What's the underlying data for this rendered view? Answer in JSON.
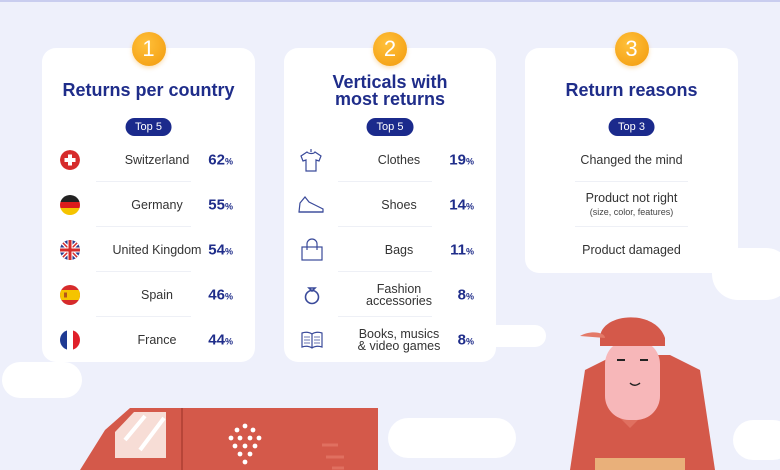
{
  "cards": [
    {
      "number": "1",
      "title": "Returns per country",
      "badge": "Top 5",
      "rows": [
        {
          "label": "Switzerland",
          "value": "62",
          "unit": "%",
          "icon": "swiss-flag-icon"
        },
        {
          "label": "Germany",
          "value": "55",
          "unit": "%",
          "icon": "german-flag-icon"
        },
        {
          "label": "United Kingdom",
          "value": "54",
          "unit": "%",
          "icon": "uk-flag-icon"
        },
        {
          "label": "Spain",
          "value": "46",
          "unit": "%",
          "icon": "spanish-flag-icon"
        },
        {
          "label": "France",
          "value": "44",
          "unit": "%",
          "icon": "french-flag-icon"
        }
      ]
    },
    {
      "number": "2",
      "title_line1": "Verticals with",
      "title_line2": "most returns",
      "badge": "Top 5",
      "rows": [
        {
          "label": "Clothes",
          "value": "19",
          "unit": "%",
          "icon": "tshirt-icon"
        },
        {
          "label": "Shoes",
          "value": "14",
          "unit": "%",
          "icon": "shoe-icon"
        },
        {
          "label": "Bags",
          "value": "11",
          "unit": "%",
          "icon": "bag-icon"
        },
        {
          "label": "Fashion",
          "label2": "accessories",
          "value": "8",
          "unit": "%",
          "icon": "ring-icon"
        },
        {
          "label": "Books, musics",
          "label2": "& video games",
          "value": "8",
          "unit": "%",
          "icon": "book-icon"
        }
      ]
    },
    {
      "number": "3",
      "title": "Return reasons",
      "badge": "Top 3",
      "rows": [
        {
          "label": "Changed the mind"
        },
        {
          "label": "Product not right",
          "sub": "(size, color, features)"
        },
        {
          "label": "Product damaged"
        }
      ]
    }
  ],
  "colors": {
    "accent": "#1f2d8a",
    "badge": "#f5a010",
    "illustration": "#d4594a",
    "background": "#eef0fb"
  }
}
